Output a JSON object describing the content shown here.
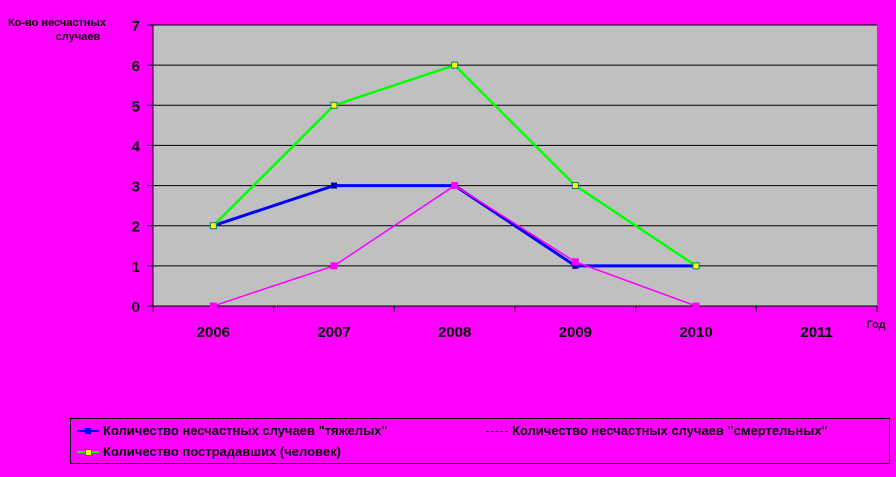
{
  "chart_data": {
    "type": "line",
    "ylabel": "Ко-во несчастных случаев",
    "xlabel": "Год",
    "categories": [
      "2006",
      "2007",
      "2008",
      "2009",
      "2010",
      "2011"
    ],
    "ylim": [
      0,
      7
    ],
    "yticks": [
      "0",
      "1",
      "2",
      "3",
      "4",
      "5",
      "6",
      "7"
    ],
    "grid": true,
    "legend_position": "bottom",
    "series": [
      {
        "name": "Количество несчастных случаев \"тяжелых\"",
        "color": "#0000ff",
        "values": [
          2,
          3,
          3,
          1,
          1,
          null
        ]
      },
      {
        "name": "Количество несчастных случаев \"смертельных\"",
        "color": "#ff00ff",
        "values": [
          0,
          1,
          3,
          1.1,
          0,
          null
        ]
      },
      {
        "name": "Количество пострадавших (человек)",
        "color": "#00ff00",
        "values": [
          2,
          5,
          6,
          3,
          1,
          null
        ]
      }
    ]
  },
  "colors": {
    "background": "#ff00ff",
    "plot_area": "#c0c0c0",
    "marker_fill": "#ffff00"
  }
}
